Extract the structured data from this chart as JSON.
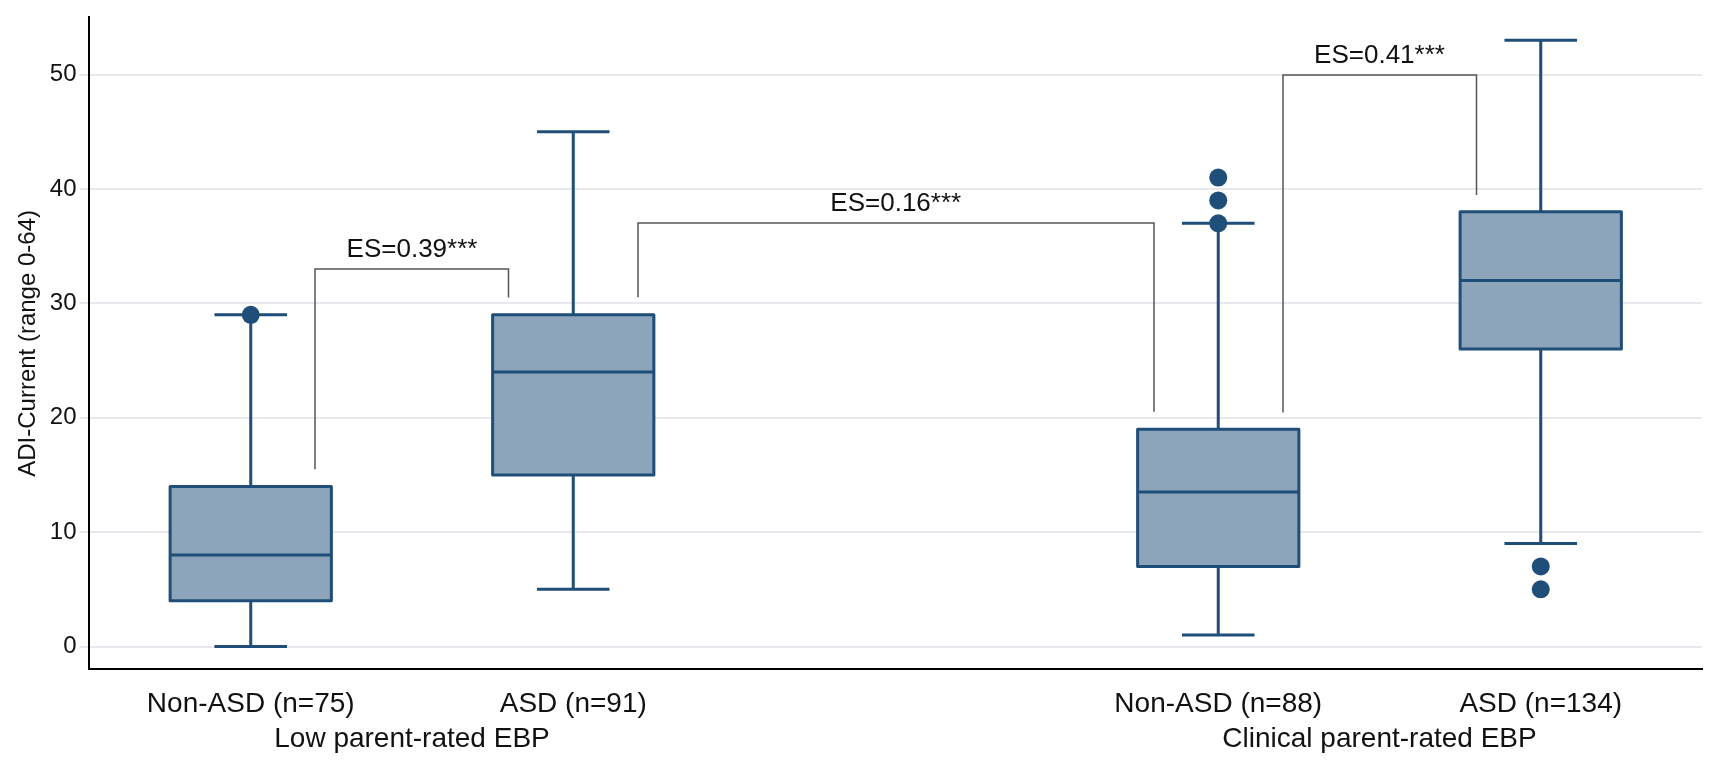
{
  "chart_data": {
    "type": "box",
    "ylabel": "ADI-Current (range 0-64)",
    "categories": [
      "Non-ASD (n=75)",
      "ASD (n=91)",
      null,
      "Non-ASD (n=88)",
      "ASD (n=134)"
    ],
    "boxes": [
      {
        "low": 0,
        "q1": 4,
        "median": 8,
        "q3": 14,
        "high": 29,
        "outliers": [
          29
        ]
      },
      {
        "low": 5,
        "q1": 15,
        "median": 24,
        "q3": 29,
        "high": 45
      },
      null,
      {
        "low": 1,
        "q1": 7,
        "median": 13.5,
        "q3": 19,
        "high": 37,
        "outliers": [
          37,
          39,
          41
        ]
      },
      {
        "low": 9,
        "q1": 26,
        "median": 32,
        "q3": 38,
        "high": 53,
        "outliers": [
          7,
          5
        ]
      }
    ],
    "color": "#8da5bb",
    "ylim": [
      -2,
      55
    ],
    "yticks": [
      0,
      10,
      20,
      30,
      40,
      50
    ],
    "grid": "y",
    "legend": false,
    "annotations": [
      "ES=0.39***",
      "ES=0.16***",
      "ES=0.41***",
      "Low parent-rated EBP",
      "Clinical parent-rated EBP"
    ]
  }
}
